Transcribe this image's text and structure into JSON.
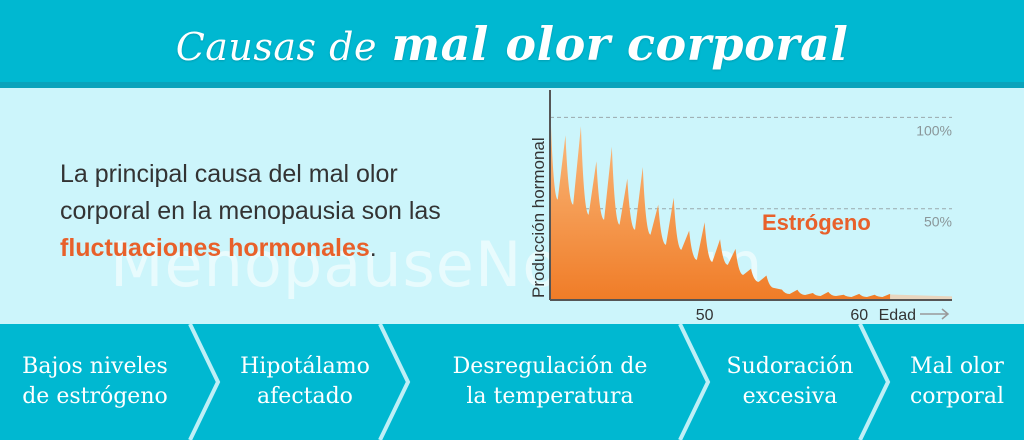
{
  "header": {
    "title_light": "Causas de",
    "title_bold": "mal olor corporal"
  },
  "intro": {
    "text_before": "La principal causa del mal olor corporal en la menopausia son las ",
    "highlight": "fluctuaciones hormonales",
    "text_after": "."
  },
  "watermark": "MenopauseNow.com",
  "chart_data": {
    "type": "area",
    "ylabel": "Producción hormonal",
    "xlabel": "Edad",
    "x_ticks": [
      50,
      60
    ],
    "y_ticks": [
      "50%",
      "100%"
    ],
    "series": [
      {
        "name": "Estrógeno",
        "x": [
          40,
          41,
          42,
          43,
          44,
          45,
          46,
          47,
          48,
          49,
          50,
          51,
          52,
          53,
          54,
          55,
          56,
          57,
          58,
          59,
          60,
          61,
          62
        ],
        "values": [
          100,
          95,
          85,
          80,
          75,
          70,
          65,
          55,
          50,
          40,
          38,
          35,
          25,
          18,
          12,
          6,
          5,
          4,
          4,
          3,
          3,
          3,
          3
        ]
      }
    ],
    "grid_lines_y": [
      50,
      100
    ],
    "grid": false
  },
  "steps": [
    {
      "label": "Bajos niveles\nde estrógeno"
    },
    {
      "label": "Hipotálamo\nafectado"
    },
    {
      "label": "Desregulación de\nla temperatura"
    },
    {
      "label": "Sudoración\nexcesiva"
    },
    {
      "label": "Mal olor\ncorporal"
    }
  ],
  "colors": {
    "header_bg": "#00b8d1",
    "main_bg": "#ccf5fb",
    "accent_orange": "#e8602a",
    "area_top": "#f9b77a",
    "area_bottom": "#f07c27"
  }
}
